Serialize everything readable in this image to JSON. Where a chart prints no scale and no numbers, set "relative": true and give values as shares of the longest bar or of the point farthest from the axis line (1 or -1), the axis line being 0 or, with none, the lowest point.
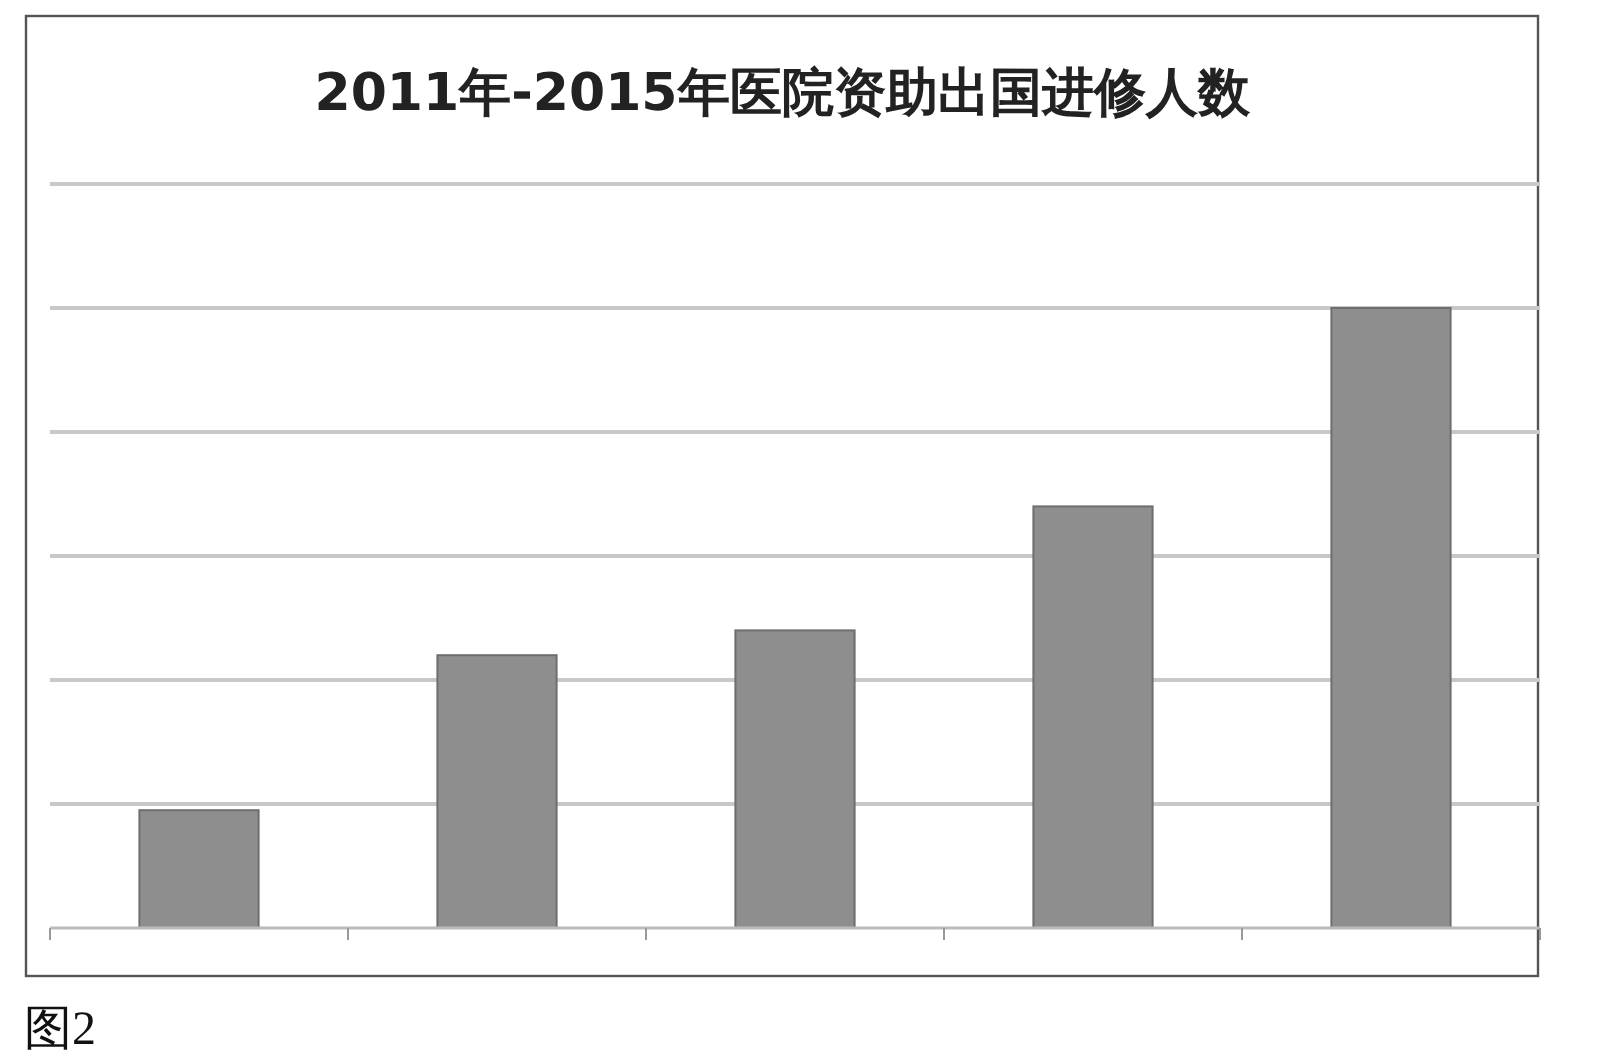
{
  "chart_data": {
    "type": "bar",
    "title": "2011年-2015年医院资助出国进修人数",
    "categories": [
      null,
      null,
      null,
      null,
      null
    ],
    "values": [
      0.19,
      0.44,
      0.48,
      0.68,
      1
    ],
    "color": "#8e8e8e",
    "relative": true,
    "grid": true,
    "annotations": [
      "图2"
    ]
  }
}
